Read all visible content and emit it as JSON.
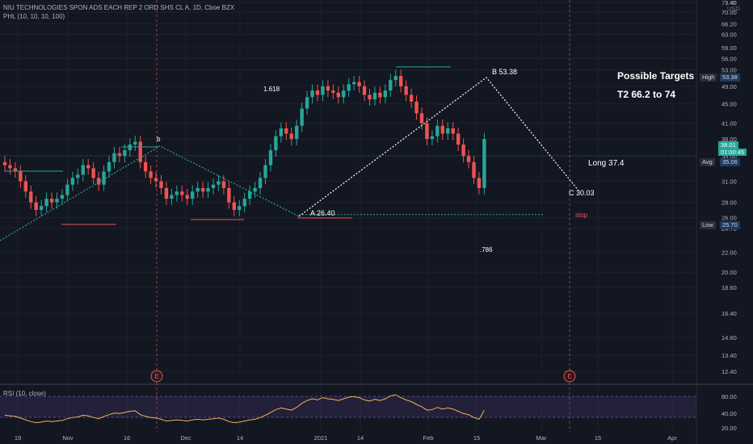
{
  "header": {
    "symbol_line": "NIU TECHNOLOGIES SPON ADS EACH REP 2 ORD SHS CL A, 1D, Cboe BZX",
    "indicator_line": "PHL (10, 10, 10, 100)"
  },
  "price_axis": {
    "currency": "USD",
    "ticks": [
      "73.40",
      "70.00",
      "66.20",
      "63.00",
      "59.00",
      "56.00",
      "53.00",
      "49.00",
      "45.00",
      "41.00",
      "38.00",
      "35.00",
      "31.00",
      "28.00",
      "26.00",
      "24.70",
      "22.00",
      "20.00",
      "18.60",
      "16.40",
      "14.60",
      "13.40",
      "12.40"
    ],
    "top_label": "77.40"
  },
  "price_tags": {
    "current": "38.01",
    "countdown": "01:00:45",
    "high_label": "High",
    "high_value": "53.38",
    "avg_label": "Avg",
    "avg_value": "35.06",
    "low_label": "Low",
    "low_value": "25.70"
  },
  "annotations": {
    "fib_1618": "1.618",
    "fib_786": ".786",
    "point_b_small": "b",
    "point_a": "A 26.40",
    "point_b": "B 53.38",
    "point_c": "C 30.03",
    "long": "Long 37.4",
    "stop": "stop",
    "targets_title": "Possible Targets",
    "targets_t2": "T2  66.2 to 74",
    "earnings_marker": "E"
  },
  "rsi": {
    "label": "RSI (10, close)",
    "ticks": [
      "80.00",
      "40.00",
      "20.00"
    ]
  },
  "time_axis": [
    "19",
    "Nov",
    "16",
    "Dec",
    "14",
    "2021",
    "14",
    "Feb",
    "15",
    "Mar",
    "15",
    "Apr"
  ],
  "colors": {
    "background": "#131722",
    "up": "#26a69a",
    "down": "#ef5350",
    "rsi_line": "#f0b25a",
    "rsi_band": "#7e57c2",
    "trendline": "#ffffff",
    "fib_line": "#26a69a",
    "earnings": "#ef5350"
  },
  "chart_data": {
    "type": "candlestick",
    "title": "NIU TECHNOLOGIES SPON ADS EACH REP 2 ORD SHS CL A, 1D, Cboe BZX",
    "ylabel": "USD",
    "ylim": [
      12,
      77.4
    ],
    "scale": "log",
    "candles_approx_close": [
      33.5,
      33.0,
      32.5,
      31.0,
      29.5,
      28.0,
      27.0,
      27.5,
      28.5,
      28.0,
      28.5,
      29.0,
      30.5,
      31.5,
      32.0,
      33.5,
      33.0,
      31.5,
      30.5,
      32.5,
      34.0,
      35.5,
      35.0,
      36.0,
      37.0,
      37.5,
      34.0,
      32.5,
      31.5,
      31.0,
      30.0,
      28.5,
      29.0,
      29.5,
      29.0,
      28.5,
      29.5,
      30.0,
      29.5,
      30.0,
      30.5,
      31.0,
      30.0,
      28.0,
      27.0,
      27.5,
      28.5,
      29.5,
      30.0,
      31.5,
      33.5,
      36.0,
      38.5,
      40.0,
      39.0,
      38.0,
      40.5,
      44.0,
      46.5,
      48.0,
      47.0,
      49.0,
      48.0,
      47.5,
      46.5,
      48.0,
      49.5,
      50.0,
      49.0,
      47.0,
      46.0,
      47.5,
      46.5,
      48.0,
      50.5,
      51.5,
      49.0,
      47.0,
      45.5,
      43.0,
      41.0,
      38.0,
      38.5,
      40.5,
      39.0,
      40.0,
      39.0,
      37.0,
      35.0,
      34.0,
      31.5,
      30.0,
      38.0
    ],
    "rsi_range": [
      20,
      80
    ],
    "points": {
      "A": 26.4,
      "B": 53.38,
      "C": 30.03
    },
    "levels": {
      "long": 37.4,
      "high": 53.38,
      "avg": 35.06,
      "low": 25.7
    },
    "targets": "T2 66.2 to 74"
  }
}
